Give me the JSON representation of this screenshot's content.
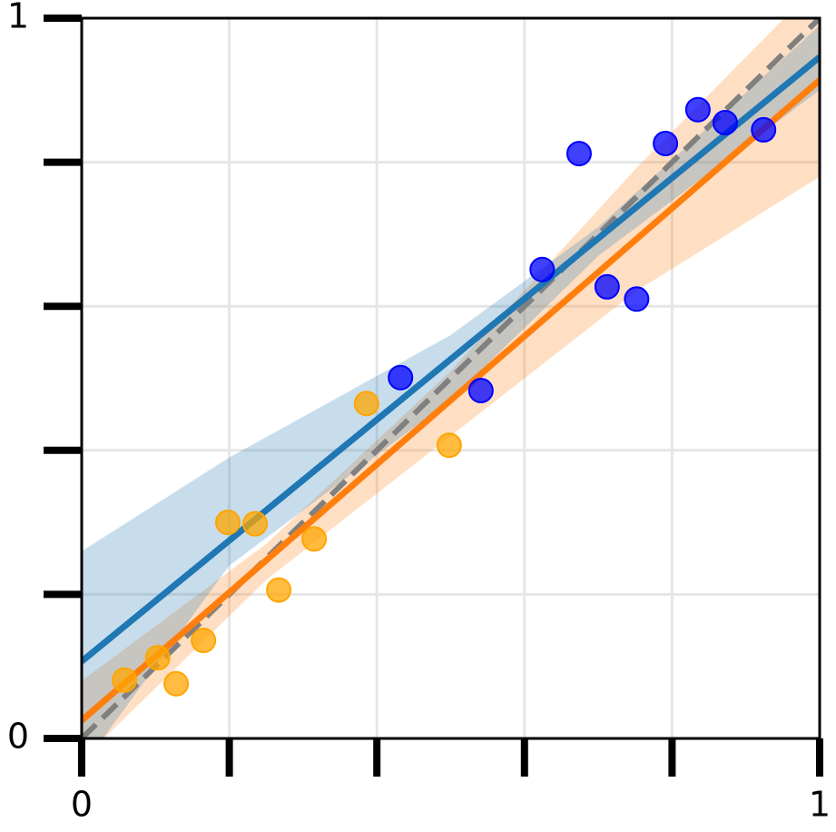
{
  "chart_data": {
    "type": "scatter",
    "xlim": [
      0,
      1
    ],
    "ylim": [
      0,
      1
    ],
    "xticks": [
      0,
      {
        "value": 0.2,
        "label": null
      },
      {
        "value": 0.4,
        "label": null
      },
      {
        "value": 0.6,
        "label": null
      },
      {
        "value": 0.8,
        "label": null
      },
      1
    ],
    "yticks": [
      0,
      {
        "value": 0.2,
        "label": null
      },
      {
        "value": 0.4,
        "label": null
      },
      {
        "value": 0.6,
        "label": null
      },
      {
        "value": 0.8,
        "label": null
      },
      1
    ],
    "grid": true,
    "series": [
      {
        "color": "#ffa500",
        "fit_color": "#ff7f0e",
        "x": [
          0.058,
          0.103,
          0.128,
          0.165,
          0.198,
          0.235,
          0.267,
          0.315,
          0.386,
          0.498
        ],
        "y": [
          0.081,
          0.112,
          0.076,
          0.136,
          0.3,
          0.298,
          0.206,
          0.277,
          0.465,
          0.407
        ],
        "fit_x": [
          0,
          1
        ],
        "fit_y": [
          0.025,
          0.914
        ],
        "band_x": [
          0,
          0.25,
          0.5,
          0.75,
          1
        ],
        "band_lower": [
          -0.03,
          0.22,
          0.42,
          0.62,
          0.78
        ],
        "band_upper": [
          0.08,
          0.27,
          0.51,
          0.79,
          1.05
        ]
      },
      {
        "color": "#0000ff",
        "fit_color": "#1f77b4",
        "x": [
          0.432,
          0.541,
          0.624,
          0.674,
          0.712,
          0.752,
          0.791,
          0.835,
          0.872,
          0.924
        ],
        "y": [
          0.501,
          0.483,
          0.651,
          0.812,
          0.627,
          0.61,
          0.826,
          0.873,
          0.855,
          0.845
        ],
        "fit_x": [
          0,
          1
        ],
        "fit_y": [
          0.107,
          0.946
        ],
        "band_x": [
          0,
          0.2,
          0.5,
          0.7,
          1
        ],
        "band_lower": [
          -0.04,
          0.24,
          0.47,
          0.67,
          0.9
        ],
        "band_upper": [
          0.26,
          0.39,
          0.56,
          0.71,
          0.99
        ]
      }
    ],
    "reference": {
      "x": [
        0,
        1
      ],
      "y": [
        0,
        1
      ],
      "color": "#808080"
    }
  }
}
